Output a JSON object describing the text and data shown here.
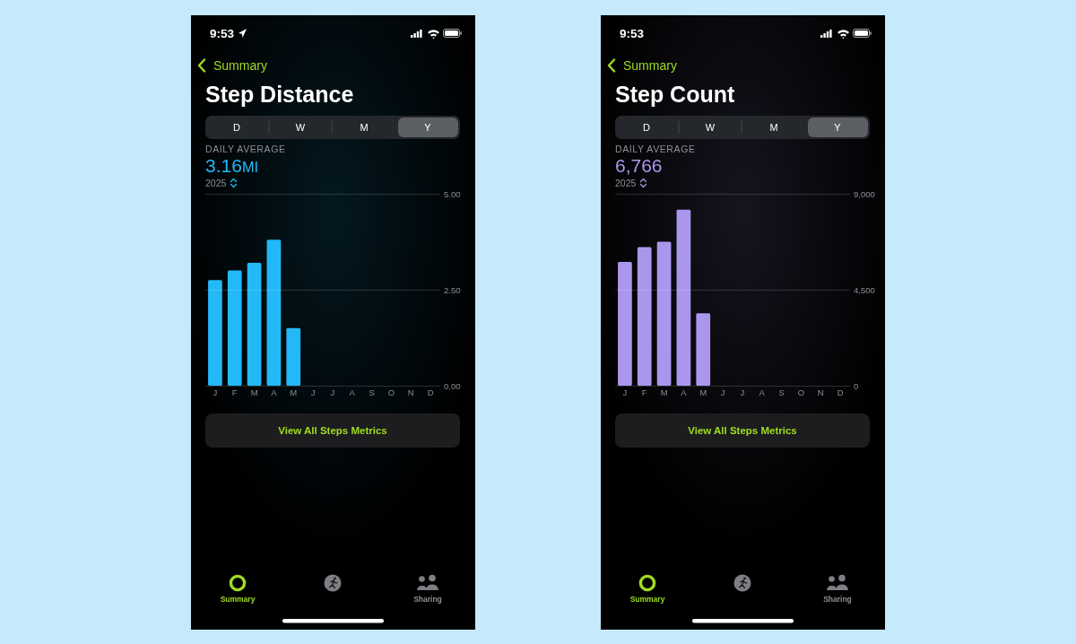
{
  "chart_data": [
    {
      "type": "bar",
      "title": "Step Distance",
      "categories": [
        "J",
        "F",
        "M",
        "A",
        "M",
        "J",
        "J",
        "A",
        "S",
        "O",
        "N",
        "D"
      ],
      "values": [
        2.75,
        3.0,
        3.2,
        3.8,
        1.5,
        null,
        null,
        null,
        null,
        null,
        null,
        null
      ],
      "color": "#22b9f6",
      "ylim": [
        0,
        5
      ],
      "yticks": [
        {
          "value": 0,
          "label": "0.00"
        },
        {
          "value": 2.5,
          "label": "2.50"
        },
        {
          "value": 5,
          "label": "5.00"
        }
      ],
      "grid": "y",
      "annotations": [
        "9:53",
        "Summary",
        "D",
        "W",
        "M",
        "Y",
        "DAILY AVERAGE",
        "3.16MI",
        "2025",
        "View All Steps Metrics",
        "Summary",
        "Sharing"
      ]
    },
    {
      "type": "bar",
      "title": "Step Count",
      "categories": [
        "J",
        "F",
        "M",
        "A",
        "M",
        "J",
        "J",
        "A",
        "S",
        "O",
        "N",
        "D"
      ],
      "values": [
        5800,
        6500,
        6750,
        8250,
        3400,
        null,
        null,
        null,
        null,
        null,
        null,
        null
      ],
      "color": "#ab96ee",
      "ylim": [
        0,
        9000
      ],
      "yticks": [
        0,
        {
          "value": 4500,
          "label": "4,500"
        },
        {
          "value": 9000,
          "label": "9,000"
        }
      ],
      "grid": "y",
      "annotations": [
        "9:53",
        "Summary",
        "D",
        "W",
        "M",
        "Y",
        "DAILY AVERAGE",
        "6,766",
        "2025",
        "View All Steps Metrics",
        "Summary",
        "Sharing"
      ]
    }
  ]
}
